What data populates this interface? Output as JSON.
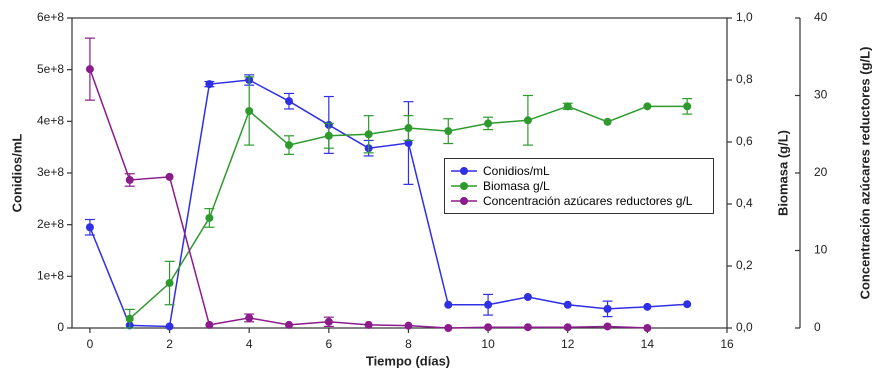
{
  "chart_data": {
    "type": "line",
    "x_label": "Tiempo (días)",
    "y_label": "Conidios/mL",
    "y2_label": "Biomasa (g/L)",
    "y3_label": "Concentración azúcares reductores (g/L)",
    "x": [
      0,
      1,
      2,
      3,
      4,
      5,
      6,
      7,
      8,
      9,
      10,
      11,
      12,
      13,
      14,
      15
    ],
    "xlim": [
      -0.45,
      16
    ],
    "xticks": [
      0,
      2,
      4,
      6,
      8,
      10,
      12,
      14,
      16
    ],
    "ylim": [
      0,
      600000000
    ],
    "yticks": [
      0,
      {
        "value": 100000000,
        "label": "1e+8"
      },
      {
        "value": 200000000,
        "label": "2e+8"
      },
      {
        "value": 300000000,
        "label": "3e+8"
      },
      {
        "value": 400000000,
        "label": "4e+8"
      },
      {
        "value": 500000000,
        "label": "5e+8"
      },
      {
        "value": 600000000,
        "label": "6e+8"
      }
    ],
    "y2lim": [
      0,
      1
    ],
    "y2ticks": [
      {
        "value": 0,
        "label": "0,0"
      },
      {
        "value": 0.2,
        "label": "0,2"
      },
      {
        "value": 0.4,
        "label": "0,4"
      },
      {
        "value": 0.6,
        "label": "0,6"
      },
      {
        "value": 0.8,
        "label": "0,8"
      },
      {
        "value": 1,
        "label": "1,0"
      }
    ],
    "y3lim": [
      0,
      40
    ],
    "y3ticks": [
      0,
      10,
      20,
      30,
      40
    ],
    "series": [
      {
        "name": "Conidios/mL",
        "color": "#2f2fe6",
        "axis": "y",
        "values": [
          195000000,
          5000000,
          3000000,
          472000000,
          480000000,
          439000000,
          393000000,
          348000000,
          358000000,
          45000000,
          45000000,
          60000000,
          45000000,
          37000000,
          41000000,
          46000000
        ],
        "errors": [
          15000000,
          null,
          null,
          5000000,
          10000000,
          15000000,
          55000000,
          15000000,
          80000000,
          null,
          20000000,
          null,
          null,
          15000000,
          null,
          null
        ]
      },
      {
        "name": "Biomasa g/L",
        "color": "#2e9a2e",
        "axis": "y2",
        "values": [
          null,
          0.03,
          0.145,
          0.355,
          0.7,
          0.59,
          0.62,
          0.625,
          0.645,
          0.635,
          0.66,
          0.67,
          0.715,
          0.665,
          0.715,
          0.715
        ],
        "errors": [
          null,
          0.03,
          0.07,
          0.03,
          0.11,
          0.03,
          0.04,
          0.06,
          0.04,
          0.04,
          0.02,
          0.08,
          0.01,
          null,
          null,
          0.025
        ]
      },
      {
        "name": "Concentración azúcares reductores g/L",
        "color": "#8b1c8b",
        "axis": "y3",
        "values": [
          33.4,
          19.1,
          19.5,
          0.4,
          1.3,
          0.4,
          0.8,
          0.4,
          0.3,
          0,
          0.1,
          0.1,
          0.1,
          0.2,
          0,
          null
        ],
        "errors": [
          4,
          0.8,
          null,
          null,
          0.5,
          null,
          0.6,
          null,
          null,
          null,
          null,
          null,
          null,
          null,
          null,
          null
        ]
      }
    ]
  }
}
